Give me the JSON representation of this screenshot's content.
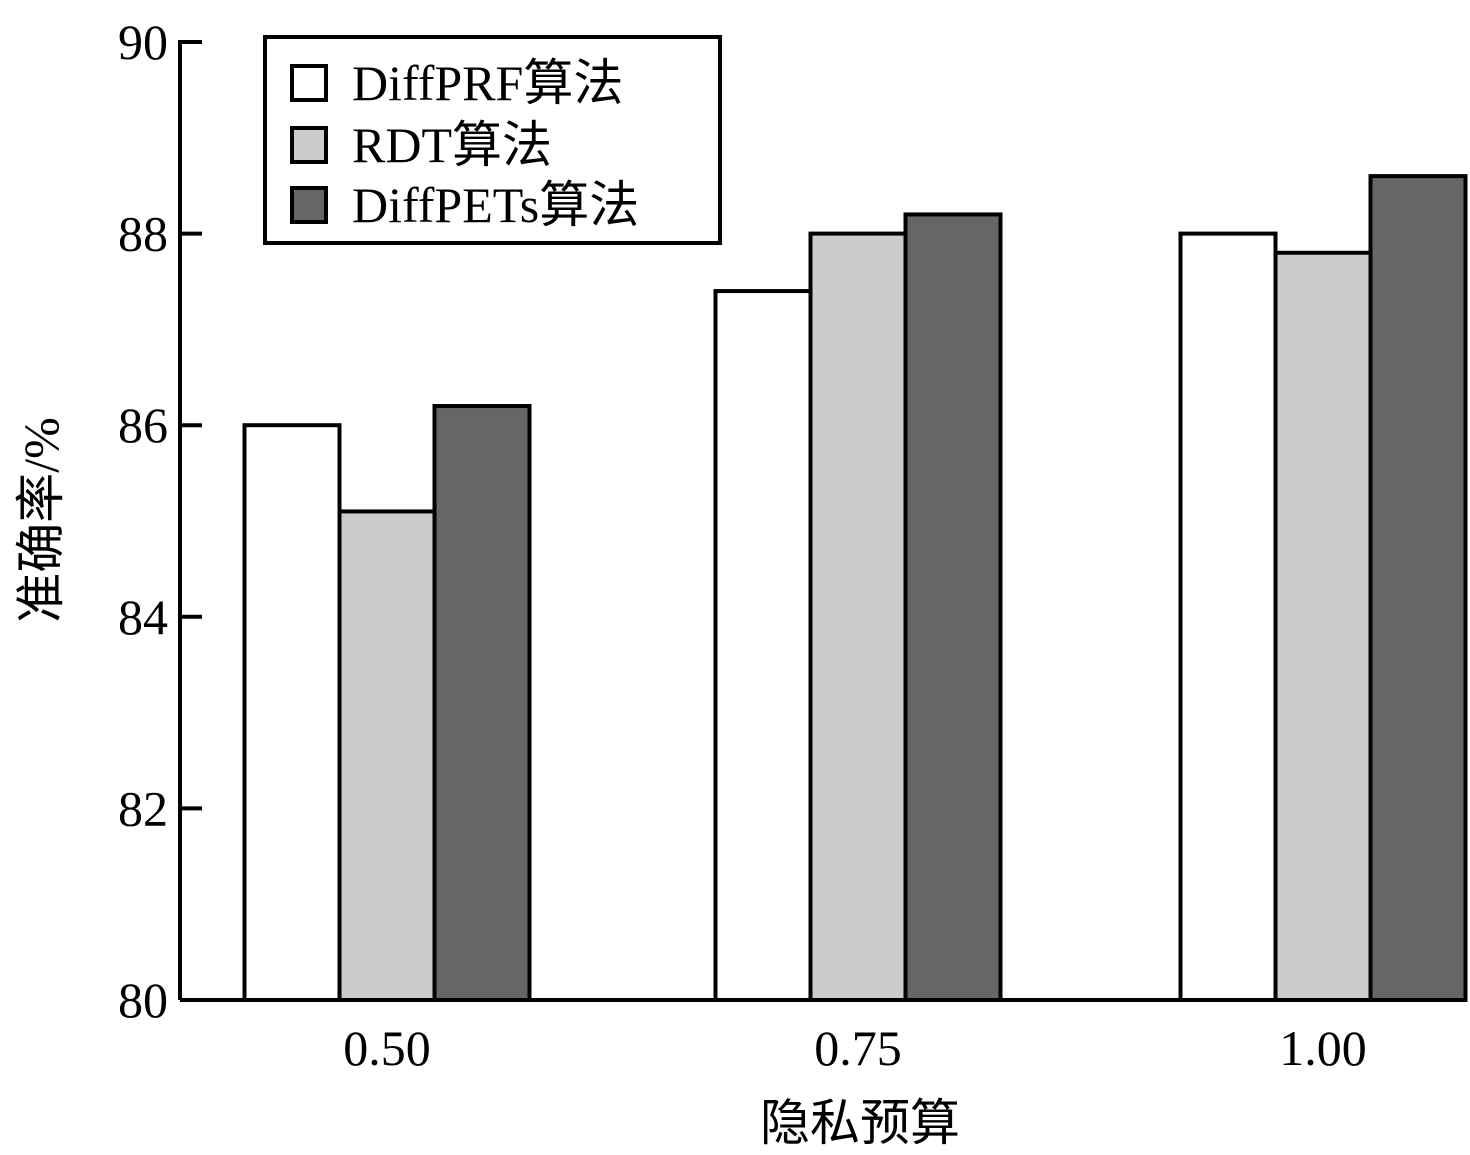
{
  "chart_data": {
    "type": "bar",
    "title": "",
    "xlabel": "隐私预算",
    "ylabel": "准确率/%",
    "categories": [
      "0.50",
      "0.75",
      "1.00"
    ],
    "series": [
      {
        "name": "DiffPRF算法",
        "color": "#ffffff",
        "values": [
          86.0,
          87.4,
          88.0
        ]
      },
      {
        "name": "RDT算法",
        "color": "#cccccc",
        "values": [
          85.1,
          88.0,
          87.8
        ]
      },
      {
        "name": "DiffPETs算法",
        "color": "#666666",
        "values": [
          86.2,
          88.2,
          88.6
        ]
      }
    ],
    "ylim": [
      80,
      90
    ],
    "yticks": [
      "80",
      "82",
      "84",
      "86",
      "88",
      "90"
    ],
    "grid": false,
    "legend_position": "top-left"
  }
}
